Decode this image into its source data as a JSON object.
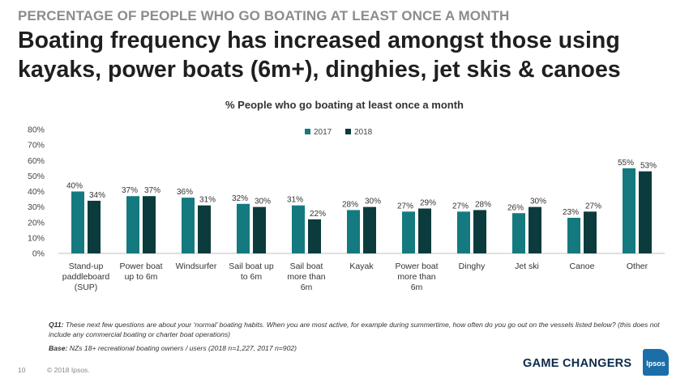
{
  "slide": {
    "kicker": "PERCENTAGE OF PEOPLE WHO GO BOATING AT LEAST ONCE A MONTH",
    "headline": "Boating frequency has increased amongst those using kayaks, power boats (6m+), dinghies, jet skis & canoes",
    "page_number": "10",
    "copyright": "© 2018 Ipsos.",
    "brand": "GAME CHANGERS",
    "logo_text": "Ipsos"
  },
  "notes": {
    "q_label": "Q11:",
    "q_text": "These next few questions are about your ‘normal’ boating habits. When you are most active, for example during summertime, how often do you go out on the vessels listed below? (this does not include any commercial boating or charter boat operations)",
    "base_label": "Base:",
    "base_text": "NZs 18+ recreational boating owners / users (2018 n=1,227, 2017 n=902)"
  },
  "chart_data": {
    "type": "bar",
    "title": "% People who go boating at least once a month",
    "categories": [
      [
        "Stand-up",
        "paddleboard",
        "(SUP)"
      ],
      [
        "Power boat",
        "up to 6m"
      ],
      [
        "Windsurfer"
      ],
      [
        "Sail boat up",
        "to 6m"
      ],
      [
        "Sail boat",
        "more than",
        "6m"
      ],
      [
        "Kayak"
      ],
      [
        "Power boat",
        "more than",
        "6m"
      ],
      [
        "Dinghy"
      ],
      [
        "Jet ski"
      ],
      [
        "Canoe"
      ],
      [
        "Other"
      ]
    ],
    "series": [
      {
        "name": "2017",
        "color": "#147a7f",
        "values": [
          40,
          37,
          36,
          32,
          31,
          28,
          27,
          27,
          26,
          23,
          55
        ]
      },
      {
        "name": "2018",
        "color": "#0c3b3d",
        "values": [
          34,
          37,
          31,
          30,
          22,
          30,
          29,
          28,
          30,
          27,
          53
        ]
      }
    ],
    "yticks": [
      "0%",
      "10%",
      "20%",
      "30%",
      "40%",
      "50%",
      "60%",
      "70%",
      "80%"
    ],
    "ylim": [
      0,
      80
    ],
    "legend_position": "top-center",
    "grid": false
  }
}
